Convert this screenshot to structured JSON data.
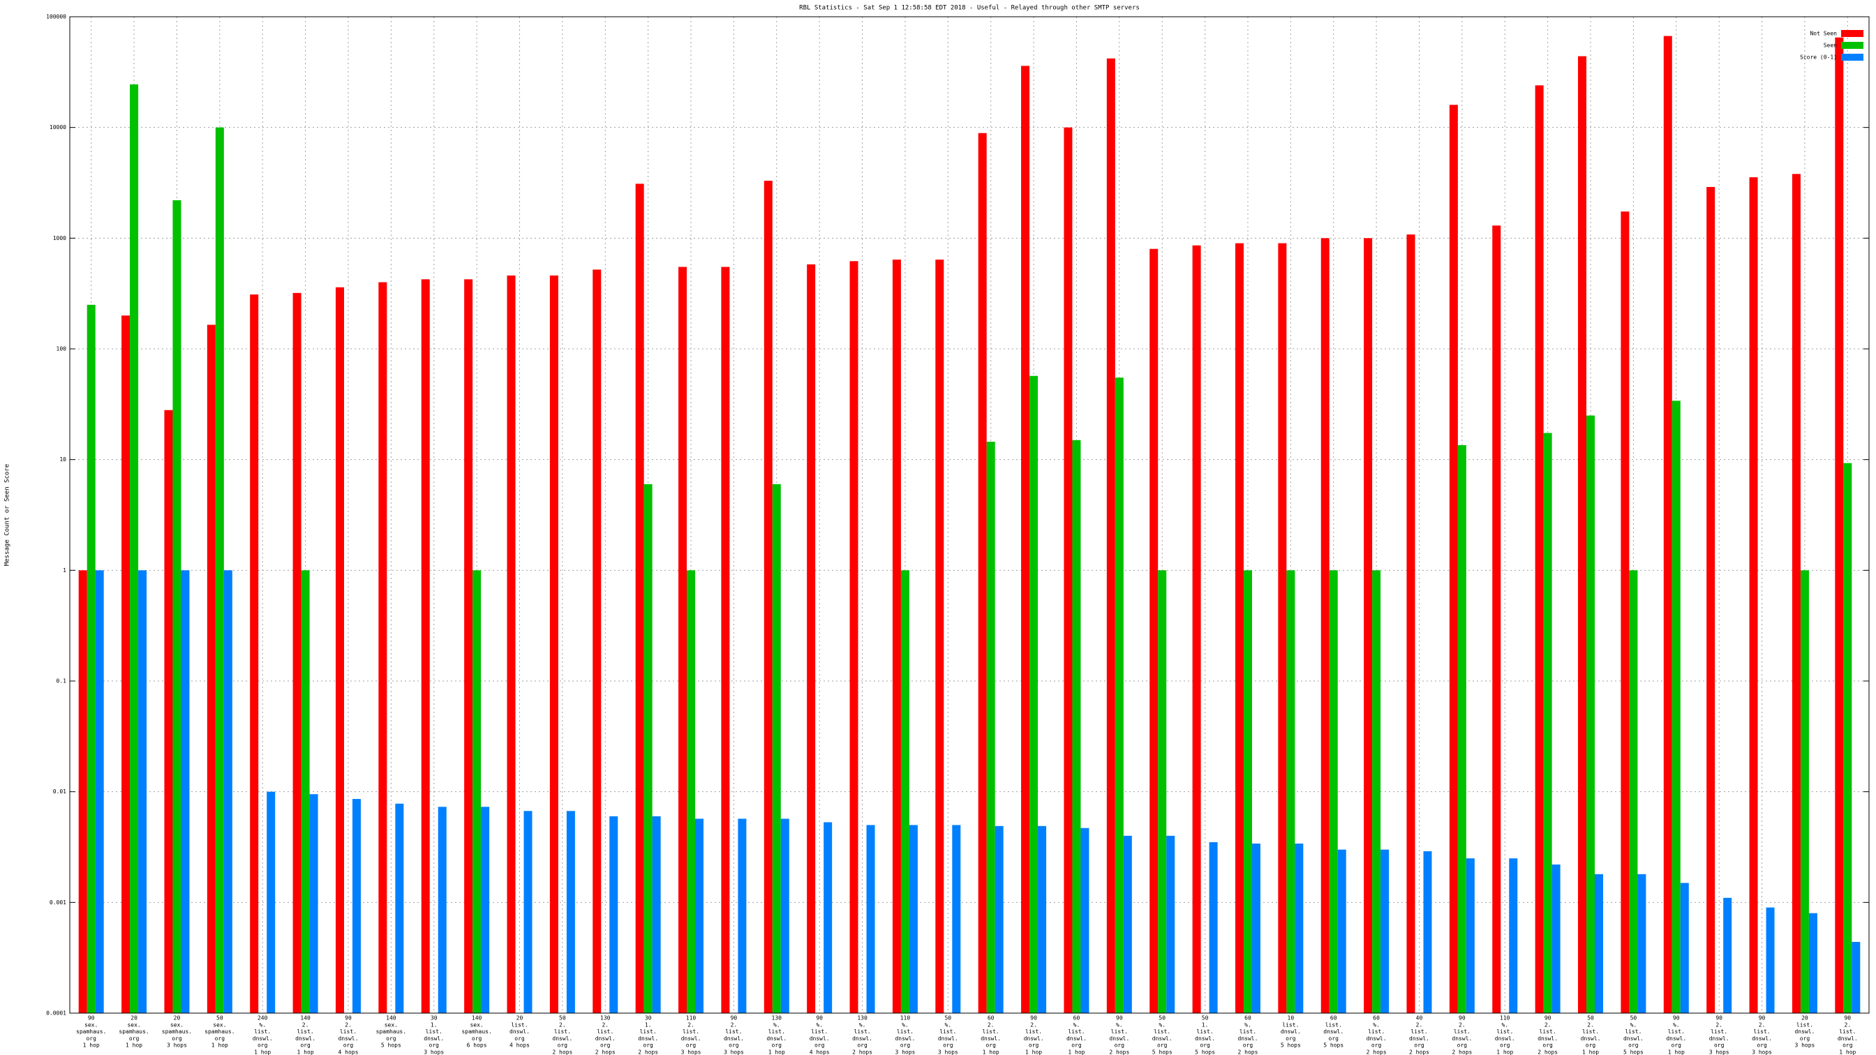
{
  "chart_data": {
    "type": "bar",
    "title": "RBL Statistics - Sat Sep  1 12:58:58 EDT 2018 - Useful - Relayed through other SMTP servers",
    "y_label": "Message Count or Seen Score",
    "log_scale": true,
    "grid": true,
    "legend": "top-right",
    "ylim": [
      0.0001,
      100000
    ],
    "yticks": [
      0.0001,
      0.001,
      0.01,
      0.1,
      1,
      10,
      100,
      1000,
      10000,
      100000
    ],
    "categories": [
      [
        "90",
        "sex.",
        "spamhaus.",
        "org",
        "1 hop"
      ],
      [
        "20",
        "sex.",
        "spamhaus.",
        "org",
        "1 hop"
      ],
      [
        "20",
        "sex.",
        "spamhaus.",
        "org",
        "3 hops"
      ],
      [
        "50",
        "sex.",
        "spamhaus.",
        "org",
        "1 hop"
      ],
      [
        "240",
        "%.",
        "list.",
        "dnswl.",
        "org",
        "1 hop"
      ],
      [
        "140",
        "2.",
        "list.",
        "dnswl.",
        "org",
        "1 hop"
      ],
      [
        "90",
        "2.",
        "list.",
        "dnswl.",
        "org",
        "4 hops"
      ],
      [
        "140",
        "sex.",
        "spamhaus.",
        "org",
        "5 hops"
      ],
      [
        "30",
        "1.",
        "list.",
        "dnswl.",
        "org",
        "3 hops"
      ],
      [
        "140",
        "sex.",
        "spamhaus.",
        "org",
        "6 hops"
      ],
      [
        "20",
        "list.",
        "dnswl.",
        "org",
        "4 hops"
      ],
      [
        "50",
        "2.",
        "list.",
        "dnswl.",
        "org",
        "2 hops"
      ],
      [
        "130",
        "2.",
        "list.",
        "dnswl.",
        "org",
        "2 hops"
      ],
      [
        "30",
        "1.",
        "list.",
        "dnswl.",
        "org",
        "2 hops"
      ],
      [
        "110",
        "2.",
        "list.",
        "dnswl.",
        "org",
        "3 hops"
      ],
      [
        "90",
        "2.",
        "list.",
        "dnswl.",
        "org",
        "3 hops"
      ],
      [
        "130",
        "%.",
        "list.",
        "dnswl.",
        "org",
        "1 hop"
      ],
      [
        "90",
        "%.",
        "list.",
        "dnswl.",
        "org",
        "4 hops"
      ],
      [
        "130",
        "%.",
        "list.",
        "dnswl.",
        "org",
        "2 hops"
      ],
      [
        "110",
        "%.",
        "list.",
        "dnswl.",
        "org",
        "3 hops"
      ],
      [
        "50",
        "%.",
        "list.",
        "dnswl.",
        "org",
        "3 hops"
      ],
      [
        "60",
        "2.",
        "list.",
        "dnswl.",
        "org",
        "1 hop"
      ],
      [
        "90",
        "2.",
        "list.",
        "dnswl.",
        "org",
        "1 hop"
      ],
      [
        "60",
        "%.",
        "list.",
        "dnswl.",
        "org",
        "1 hop"
      ],
      [
        "90",
        "%.",
        "list.",
        "dnswl.",
        "org",
        "2 hops"
      ],
      [
        "50",
        "%.",
        "list.",
        "dnswl.",
        "org",
        "5 hops"
      ],
      [
        "50",
        "1.",
        "list.",
        "dnswl.",
        "org",
        "5 hops"
      ],
      [
        "60",
        "%.",
        "list.",
        "dnswl.",
        "org",
        "2 hops"
      ],
      [
        "10",
        "list.",
        "dnswl.",
        "org",
        "5 hops"
      ],
      [
        "60",
        "list.",
        "dnswl.",
        "org",
        "5 hops"
      ],
      [
        "60",
        "%.",
        "list.",
        "dnswl.",
        "org",
        "2 hops"
      ],
      [
        "40",
        "2.",
        "list.",
        "dnswl.",
        "org",
        "2 hops"
      ],
      [
        "90",
        "2.",
        "list.",
        "dnswl.",
        "org",
        "2 hops"
      ],
      [
        "110",
        "%.",
        "list.",
        "dnswl.",
        "org",
        "1 hop"
      ],
      [
        "90",
        "2.",
        "list.",
        "dnswl.",
        "org",
        "2 hops"
      ],
      [
        "50",
        "2.",
        "list.",
        "dnswl.",
        "org",
        "1 hop"
      ],
      [
        "50",
        "%.",
        "list.",
        "dnswl.",
        "org",
        "5 hops"
      ],
      [
        "90",
        "%.",
        "list.",
        "dnswl.",
        "org",
        "1 hop"
      ],
      [
        "90",
        "2.",
        "list.",
        "dnswl.",
        "org",
        "3 hops"
      ],
      [
        "90",
        "2.",
        "list.",
        "dnswl.",
        "org",
        "3 hops"
      ],
      [
        "20",
        "list.",
        "dnswl.",
        "org",
        "3 hops"
      ],
      [
        "90",
        "2.",
        "list.",
        "dnswl.",
        "org",
        "1 hop"
      ]
    ],
    "series": [
      {
        "name": "Not Seen",
        "color": "#ff0000",
        "values": [
          1,
          200,
          28,
          165,
          310,
          320,
          360,
          400,
          425,
          425,
          460,
          460,
          520,
          3100,
          550,
          550,
          3300,
          580,
          620,
          640,
          640,
          8900,
          36000,
          10000,
          42000,
          800,
          860,
          900,
          900,
          1000,
          1000,
          1080,
          16000,
          1300,
          24000,
          44000,
          1740,
          67000,
          2900,
          3550,
          3800,
          65000
        ]
      },
      {
        "name": "Seen",
        "color": "#00c000",
        "values": [
          250,
          24500,
          2200,
          10000,
          null,
          1,
          null,
          null,
          null,
          1,
          null,
          null,
          null,
          6,
          1,
          null,
          6,
          null,
          null,
          1,
          null,
          14.5,
          57,
          15,
          55,
          1,
          null,
          1,
          1,
          1,
          1,
          null,
          13.5,
          null,
          17.4,
          25,
          1,
          34,
          null,
          null,
          1,
          9.3
        ]
      },
      {
        "name": "Score (0-1)",
        "color": "#0080ff",
        "values": [
          1,
          1,
          1,
          1,
          0.01,
          0.0095,
          0.0086,
          0.0078,
          0.0073,
          0.0073,
          0.0067,
          0.0067,
          0.006,
          0.006,
          0.0057,
          0.0057,
          0.0057,
          0.0053,
          0.005,
          0.005,
          0.005,
          0.0049,
          0.0049,
          0.0047,
          0.004,
          0.004,
          0.0035,
          0.0034,
          0.0034,
          0.003,
          0.003,
          0.0029,
          0.0025,
          0.0025,
          0.0022,
          0.0018,
          0.0018,
          0.0015,
          0.0011,
          0.0009,
          0.0008,
          0.00044
        ]
      }
    ]
  }
}
